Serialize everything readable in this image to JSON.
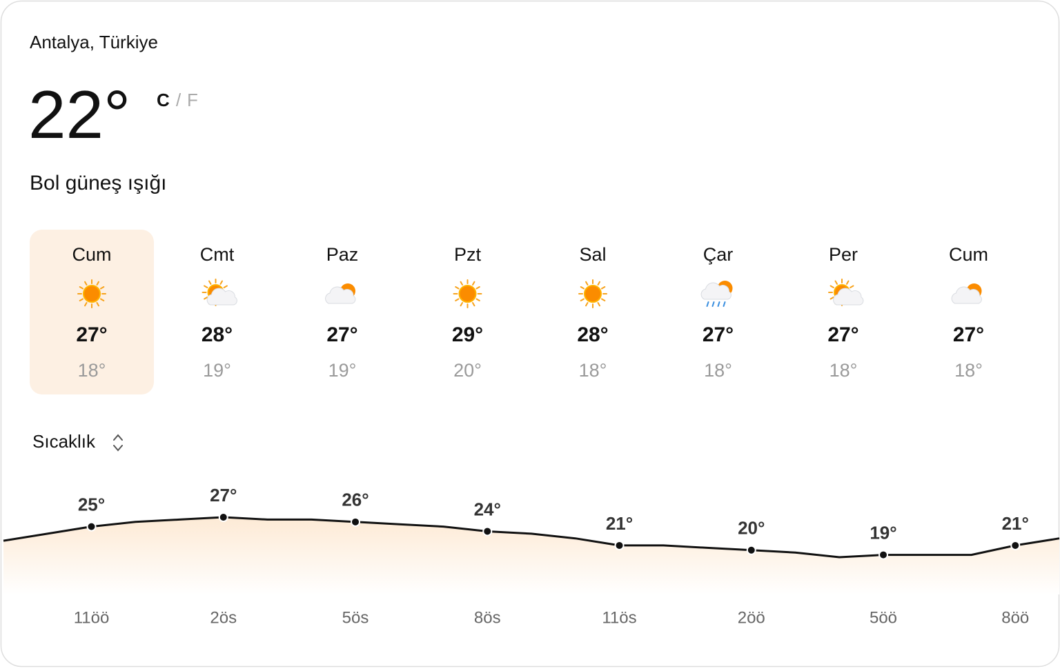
{
  "location": "Antalya, Türkiye",
  "temperature": "22°",
  "units": {
    "celsius": "C",
    "separator": "/",
    "fahrenheit": "F"
  },
  "condition": "Bol güneş ışığı",
  "days": [
    {
      "day": "Cum",
      "high": "27°",
      "low": "18°"
    },
    {
      "day": "Cmt",
      "high": "28°",
      "low": "19°"
    },
    {
      "day": "Paz",
      "high": "27°",
      "low": "19°"
    },
    {
      "day": "Pzt",
      "high": "29°",
      "low": "20°"
    },
    {
      "day": "Sal",
      "high": "28°",
      "low": "18°"
    },
    {
      "day": "Çar",
      "high": "27°",
      "low": "18°"
    },
    {
      "day": "Per",
      "high": "27°",
      "low": "18°"
    },
    {
      "day": "Cum",
      "high": "27°",
      "low": "18°"
    }
  ],
  "chart_selector": "Sıcaklık",
  "chart_data": {
    "type": "line",
    "categories": [
      null,
      null,
      "11öö",
      null,
      null,
      "2ös",
      null,
      null,
      "5ös",
      null,
      null,
      "8ös",
      null,
      null,
      "11ös",
      null,
      null,
      "2öö",
      null,
      null,
      "5öö",
      null,
      null,
      "8öö",
      null
    ],
    "series": [
      {
        "color": "#111111",
        "values": [
          22,
          23.5,
          25,
          26,
          26.5,
          27,
          26.5,
          26.5,
          26,
          25.5,
          25,
          24,
          23.5,
          22.5,
          21,
          21,
          20.5,
          20,
          19.5,
          18.5,
          19,
          19,
          19,
          21,
          22.5
        ],
        "value_labels": [
          null,
          null,
          "25°",
          null,
          null,
          "27°",
          null,
          null,
          "26°",
          null,
          null,
          "24°",
          null,
          null,
          "21°",
          null,
          null,
          "20°",
          null,
          null,
          "19°",
          null,
          null,
          "21°",
          null
        ]
      }
    ]
  }
}
